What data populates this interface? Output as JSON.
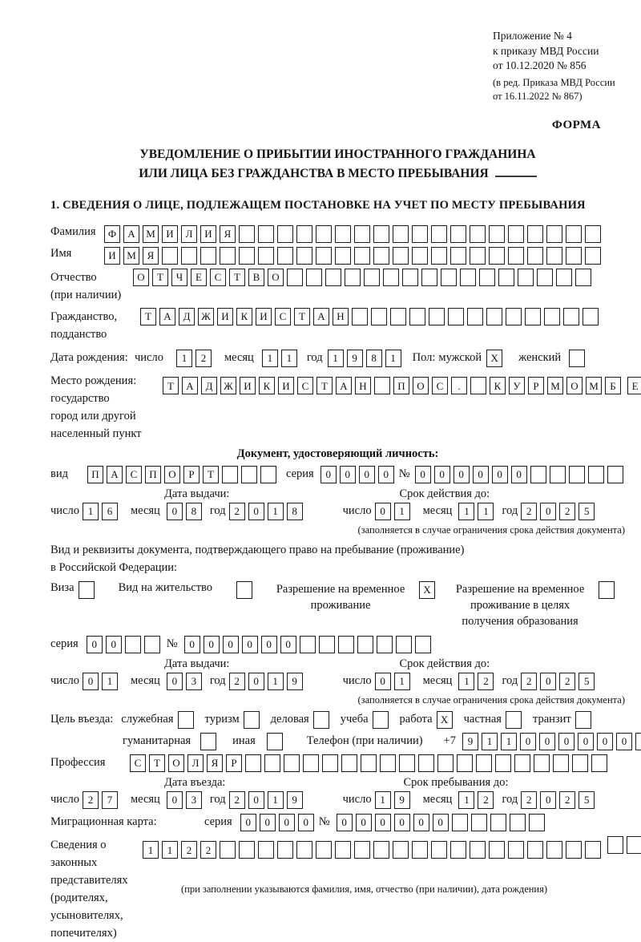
{
  "doc": {
    "annex_lines": [
      "Приложение № 4",
      "к приказу МВД России",
      "от 10.12.2020 № 856"
    ],
    "annex_amendment": [
      "(в ред. Приказа МВД России",
      "от 16.11.2022 № 867)"
    ],
    "form_word": "ФОРМА",
    "title_line1": "УВЕДОМЛЕНИЕ О ПРИБЫТИИ ИНОСТРАННОГО ГРАЖДАНИНА",
    "title_line2": "ИЛИ ЛИЦА БЕЗ ГРАЖДАНСТВА В МЕСТО ПРЕБЫВАНИЯ",
    "section1_heading": "1. СВЕДЕНИЯ О ЛИЦЕ, ПОДЛЕЖАЩЕМ ПОСТАНОВКЕ НА УЧЕТ ПО МЕСТУ ПРЕБЫВАНИЯ"
  },
  "labels": {
    "surname": "Фамилия",
    "name": "Имя",
    "patronymic": "Отчество",
    "patronymic_note": "(при наличии)",
    "citizenship1": "Гражданство,",
    "citizenship2": "подданство",
    "birth_date": "Дата рождения:",
    "day": "число",
    "month": "месяц",
    "year": "год",
    "sex": "Пол:",
    "male": "мужской",
    "female": "женский",
    "birth_place": "Место рождения:",
    "state": "государство",
    "city1": "город или другой",
    "city2": "населенный пункт",
    "id_doc_heading": "Документ, удостоверяющий личность:",
    "kind": "вид",
    "series": "серия",
    "number": "№",
    "issue_date": "Дата выдачи:",
    "valid_until": "Срок действия до:",
    "validity_note": "(заполняется в случае ограничения срока действия документа)",
    "residence_doc_line1": "Вид и реквизиты документа, подтверждающего право на пребывание (проживание)",
    "residence_doc_line2": "в Российской Федерации:",
    "visa": "Виза",
    "residence_permit": "Вид на жительство",
    "trp1": "Разрешение на временное",
    "trp2": "проживание",
    "trpe1": "Разрешение на временное",
    "trpe2": "проживание в целях",
    "trpe3": "получения образования",
    "visit_purpose": "Цель въезда:",
    "official": "служебная",
    "tourism": "туризм",
    "business": "деловая",
    "study": "учеба",
    "work": "работа",
    "private": "частная",
    "transit": "транзит",
    "humanitarian": "гуманитарная",
    "other": "иная",
    "phone": "Телефон (при наличии)",
    "phone_prefix": "+7",
    "profession": "Профессия",
    "entry_date": "Дата въезда:",
    "stay_until": "Срок пребывания до:",
    "migration_card": "Миграционная карта:",
    "rep1": "Сведения о",
    "rep2": "законных",
    "rep3": "представителях",
    "rep4": "(родителях,",
    "rep5": "усыновителях,",
    "rep6": "попечителях)",
    "representatives_note": "(при заполнении указываются фамилия, имя, отчество (при наличии), дата рождения)"
  },
  "fields": {
    "surname": {
      "cells": "ФАМИЛИЯ",
      "count": 26
    },
    "name": {
      "cells": "ИМЯ",
      "count": 26
    },
    "patronymic": {
      "cells": "ОТЧЕСТВО",
      "count": 24
    },
    "citizenship": {
      "cells": "ТАДЖИКИСТАН",
      "count": 24
    },
    "birth_day": {
      "cells": "12",
      "count": 2
    },
    "birth_month": {
      "cells": "11",
      "count": 2
    },
    "birth_year": {
      "cells": "1981",
      "count": 4
    },
    "sex_male": {
      "cells": "X",
      "count": 1
    },
    "sex_female": {
      "cells": "",
      "count": 1
    },
    "birth_place_1": {
      "cells": "ТАДЖИКИСТАН ПОС. КУРМОМБ",
      "count": 24
    },
    "birth_place_2": {
      "cells": "ЕЗ",
      "count": 24
    },
    "birth_place_3": {
      "cells": "",
      "count": 24
    },
    "id_kind": {
      "cells": "ПАСПОРТ",
      "count": 10
    },
    "id_series": {
      "cells": "0000",
      "count": 4
    },
    "id_number": {
      "cells": "000000",
      "count": 11
    },
    "id_issue_day": {
      "cells": "16",
      "count": 2
    },
    "id_issue_month": {
      "cells": "08",
      "count": 2
    },
    "id_issue_year": {
      "cells": "2018",
      "count": 4
    },
    "id_valid_day": {
      "cells": "01",
      "count": 2
    },
    "id_valid_month": {
      "cells": "11",
      "count": 2
    },
    "id_valid_year": {
      "cells": "2025",
      "count": 4
    },
    "visa_box": {
      "cells": "",
      "count": 1
    },
    "residence_permit_box": {
      "cells": "",
      "count": 1
    },
    "trp_box": {
      "cells": "X",
      "count": 1
    },
    "trp_edu_box": {
      "cells": "",
      "count": 1
    },
    "res_series": {
      "cells": "00",
      "count": 4
    },
    "res_number": {
      "cells": "000000",
      "count": 13
    },
    "res_issue_day": {
      "cells": "01",
      "count": 2
    },
    "res_issue_month": {
      "cells": "03",
      "count": 2
    },
    "res_issue_year": {
      "cells": "2019",
      "count": 4
    },
    "res_valid_day": {
      "cells": "01",
      "count": 2
    },
    "res_valid_month": {
      "cells": "12",
      "count": 2
    },
    "res_valid_year": {
      "cells": "2025",
      "count": 4
    },
    "purpose_official": {
      "cells": "",
      "count": 1
    },
    "purpose_tourism": {
      "cells": "",
      "count": 1
    },
    "purpose_business": {
      "cells": "",
      "count": 1
    },
    "purpose_study": {
      "cells": "",
      "count": 1
    },
    "purpose_work": {
      "cells": "X",
      "count": 1
    },
    "purpose_private": {
      "cells": "",
      "count": 1
    },
    "purpose_transit": {
      "cells": "",
      "count": 1
    },
    "purpose_humanitarian": {
      "cells": "",
      "count": 1
    },
    "purpose_other": {
      "cells": "",
      "count": 1
    },
    "phone": {
      "cells": "911000000",
      "count": 10
    },
    "profession": {
      "cells": "СТОЛЯР",
      "count": 25
    },
    "entry_day": {
      "cells": "27",
      "count": 2
    },
    "entry_month": {
      "cells": "03",
      "count": 2
    },
    "entry_year": {
      "cells": "2019",
      "count": 4
    },
    "stay_day": {
      "cells": "19",
      "count": 2
    },
    "stay_month": {
      "cells": "12",
      "count": 2
    },
    "stay_year": {
      "cells": "2025",
      "count": 4
    },
    "mc_series": {
      "cells": "0000",
      "count": 4
    },
    "mc_number": {
      "cells": "000000",
      "count": 11
    },
    "rep_row1": {
      "cells": "1122",
      "count": 24
    },
    "rep_row2": {
      "cells": "",
      "count": 24
    },
    "rep_row3": {
      "cells": "",
      "count": 24
    }
  }
}
